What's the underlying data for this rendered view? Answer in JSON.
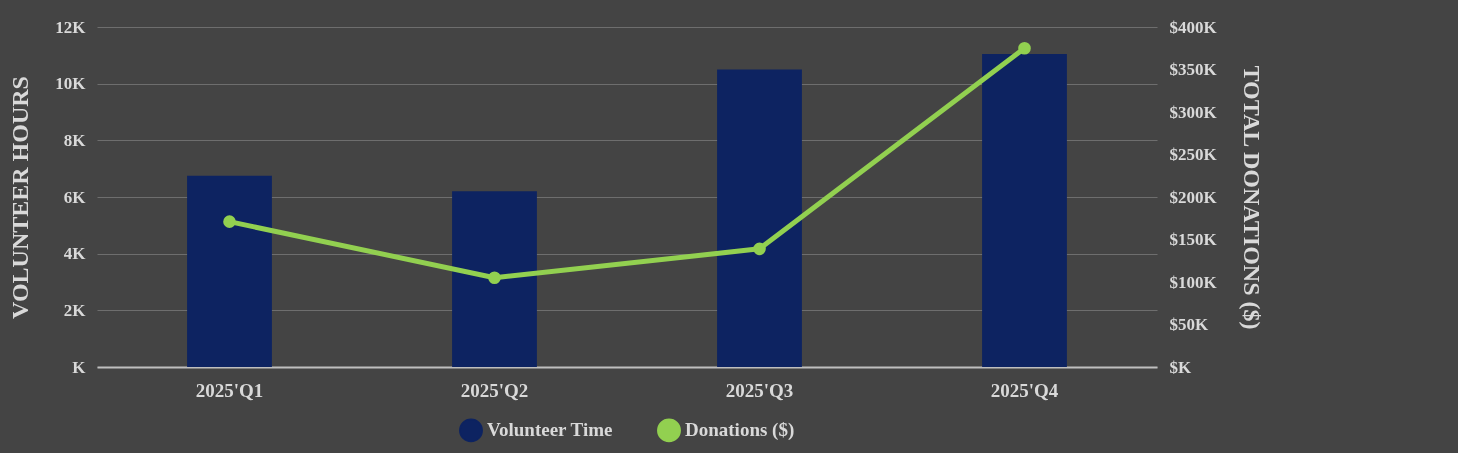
{
  "chart_data": {
    "type": "bar",
    "categories": [
      "2025'Q1",
      "2025'Q2",
      "2025'Q3",
      "2025'Q4"
    ],
    "series": [
      {
        "name": "Volunteer Time",
        "color": "#0d2361",
        "values": [
          6750,
          6200,
          10500,
          11050
        ]
      },
      {
        "name": "Donations ($)",
        "type": "line",
        "axis": "y2",
        "color": "#92d050",
        "values": [
          171000,
          105000,
          139000,
          375000
        ]
      }
    ],
    "ylabel": "VOLUNTEER HOURS",
    "y2label": "TOTAL DONATIONS ($)",
    "ylim": [
      0,
      12000
    ],
    "yticks": [
      {
        "value": 0,
        "label": "K"
      },
      {
        "value": 2000,
        "label": "2K"
      },
      {
        "value": 4000,
        "label": "4K"
      },
      {
        "value": 6000,
        "label": "6K"
      },
      {
        "value": 8000,
        "label": "8K"
      },
      {
        "value": 10000,
        "label": "10K"
      },
      {
        "value": 12000,
        "label": "12K"
      }
    ],
    "y2lim": [
      0,
      400000
    ],
    "y2ticks": [
      {
        "value": 0,
        "label": "$K"
      },
      {
        "value": 50000,
        "label": "$50K"
      },
      {
        "value": 100000,
        "label": "$100K"
      },
      {
        "value": 150000,
        "label": "$150K"
      },
      {
        "value": 200000,
        "label": "$200K"
      },
      {
        "value": 250000,
        "label": "$250K"
      },
      {
        "value": 300000,
        "label": "$300K"
      },
      {
        "value": 350000,
        "label": "$350K"
      },
      {
        "value": 400000,
        "label": "$400K"
      }
    ],
    "grid": "y",
    "legend": "bottom",
    "marker": "circle",
    "line_style": "solid"
  }
}
